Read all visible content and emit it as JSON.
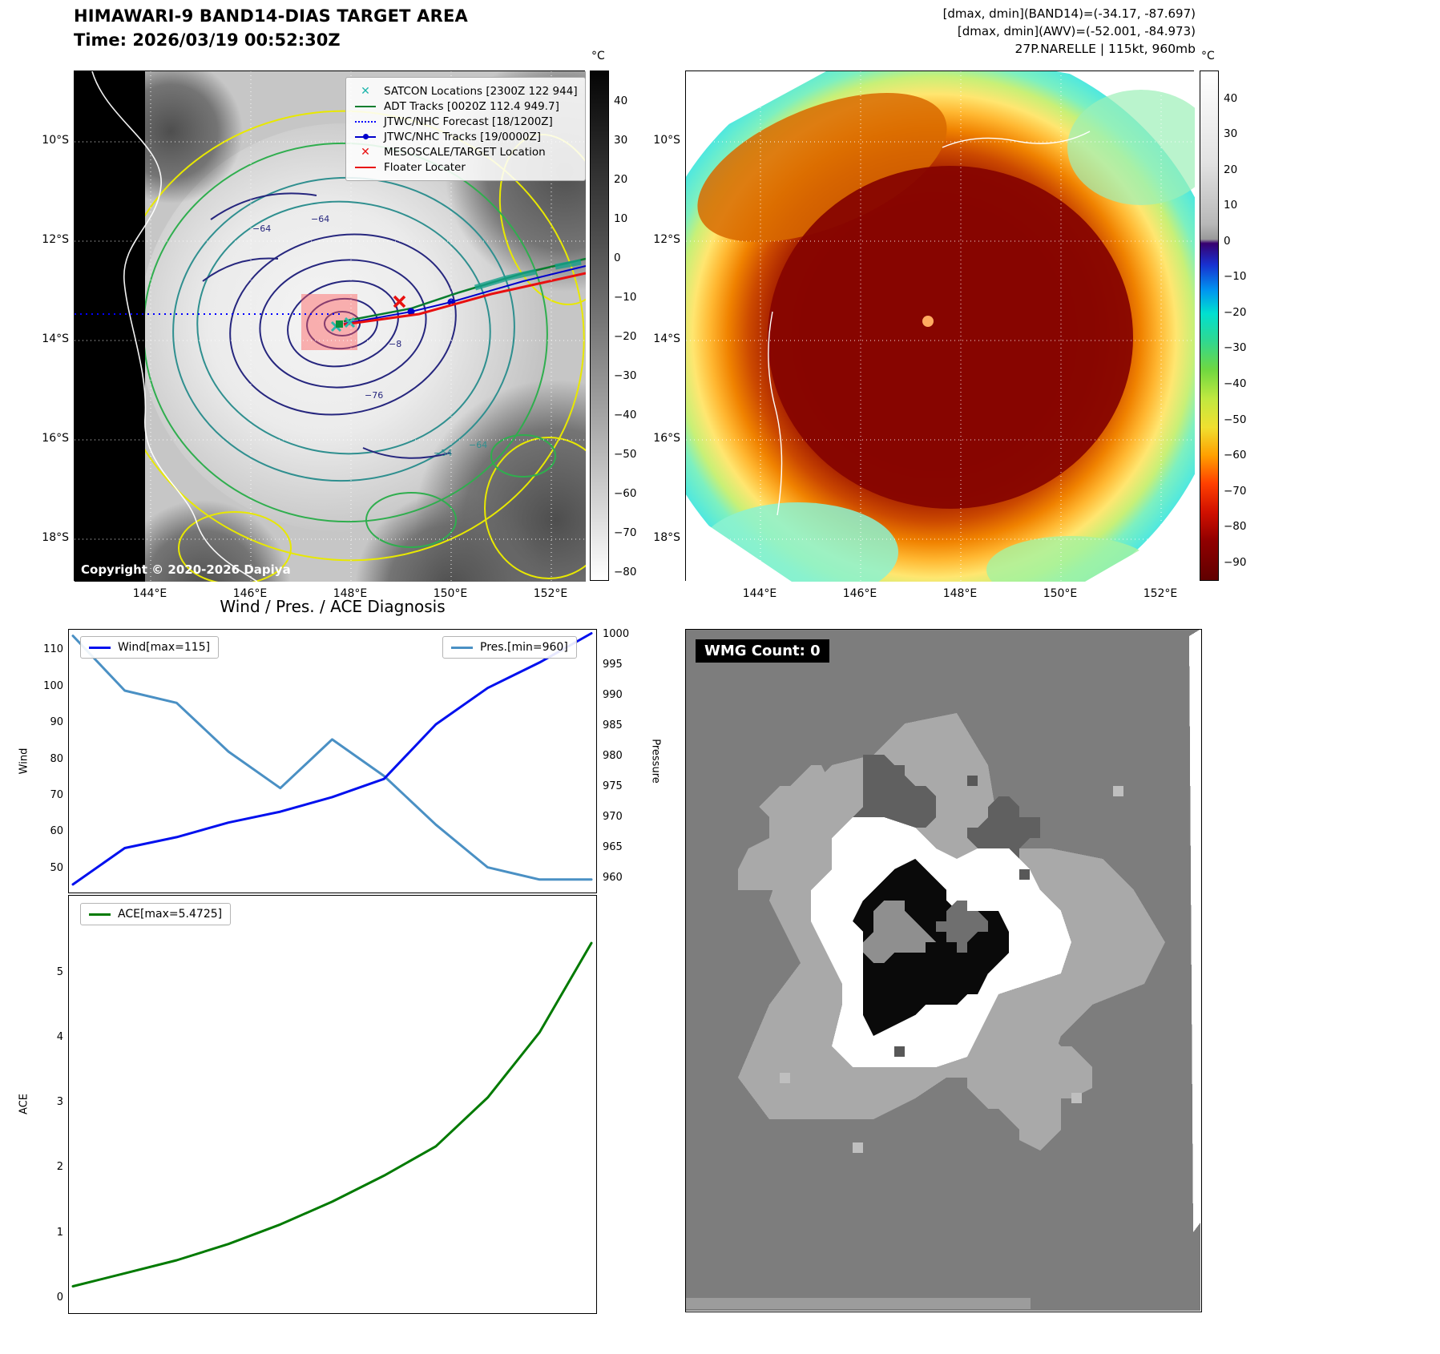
{
  "panel1": {
    "title": "HIMAWARI-9 BAND14-DIAS TARGET AREA",
    "time": "Time: 2026/03/19 00:52:30Z",
    "legend": [
      "SATCON Locations [2300Z 122 944]",
      "ADT Tracks [0020Z 112.4 949.7]",
      "JTWC/NHC Forecast [18/1200Z]",
      "JTWC/NHC Tracks [19/0000Z]",
      "MESOSCALE/TARGET Location",
      "Floater Locater"
    ],
    "copyright": "Copyright © 2020-2026 Dapiya",
    "lat_ticks": [
      "10°S",
      "12°S",
      "14°S",
      "16°S",
      "18°S"
    ],
    "lon_ticks": [
      "144°E",
      "146°E",
      "148°E",
      "150°E",
      "152°E"
    ],
    "contour_labels": [
      "−64",
      "−64",
      "−76",
      "−8",
      "−54",
      "−64"
    ],
    "colorbar": {
      "unit": "°C",
      "ticks": [
        40,
        30,
        20,
        10,
        0,
        -10,
        -20,
        -30,
        -40,
        -50,
        -60,
        -70,
        -80
      ]
    }
  },
  "panel2": {
    "header": [
      "[dmax, dmin](BAND14)=(-34.17, -87.697)",
      "[dmax, dmin](AWV)=(-52.001, -84.973)",
      "27P.NARELLE | 115kt, 960mb"
    ],
    "lat_ticks": [
      "10°S",
      "12°S",
      "14°S",
      "16°S",
      "18°S"
    ],
    "lon_ticks": [
      "144°E",
      "146°E",
      "148°E",
      "150°E",
      "152°E"
    ],
    "colorbar": {
      "unit": "°C",
      "ticks": [
        40,
        30,
        20,
        10,
        0,
        -10,
        -20,
        -30,
        -40,
        -50,
        -60,
        -70,
        -80,
        -90
      ]
    }
  },
  "panel4": {
    "label": "WMG Count: 0"
  },
  "chart_data": [
    {
      "type": "line",
      "title": "Wind / Pres. / ACE Diagnosis",
      "x": [
        0,
        1,
        2,
        3,
        4,
        5,
        6,
        7,
        8,
        9,
        10
      ],
      "series": [
        {
          "name": "Wind[max=115]",
          "axis": "left",
          "color": "#0010ee",
          "values": [
            46,
            56,
            59,
            63,
            66,
            70,
            75,
            90,
            100,
            107,
            115
          ]
        },
        {
          "name": "Pres.[min=960]",
          "axis": "right",
          "color": "#4a90c4",
          "values": [
            1000,
            991,
            989,
            981,
            975,
            983,
            977,
            969,
            962,
            960,
            960
          ]
        }
      ],
      "ylabel_left": "Wind",
      "ylabel_right": "Pressure",
      "ylim_left": [
        44,
        116
      ],
      "ylim_right": [
        958,
        1001
      ],
      "yticks_left": [
        50,
        60,
        70,
        80,
        90,
        100,
        110
      ],
      "yticks_right": [
        960,
        965,
        970,
        975,
        980,
        985,
        990,
        995,
        1000
      ],
      "legend_position": "upper-left-and-upper-right",
      "grid": false
    },
    {
      "type": "line",
      "title": "",
      "x": [
        0,
        1,
        2,
        3,
        4,
        5,
        6,
        7,
        8,
        9,
        10
      ],
      "series": [
        {
          "name": "ACE[max=5.4725]",
          "axis": "left",
          "color": "#007a00",
          "values": [
            0.2,
            0.4,
            0.6,
            0.85,
            1.15,
            1.5,
            1.9,
            2.35,
            3.1,
            4.1,
            5.4725
          ]
        }
      ],
      "ylabel": "ACE",
      "ylim": [
        -0.2,
        6.2
      ],
      "yticks": [
        0,
        1,
        2,
        3,
        4,
        5
      ],
      "legend_position": "upper-left",
      "grid": false
    }
  ]
}
